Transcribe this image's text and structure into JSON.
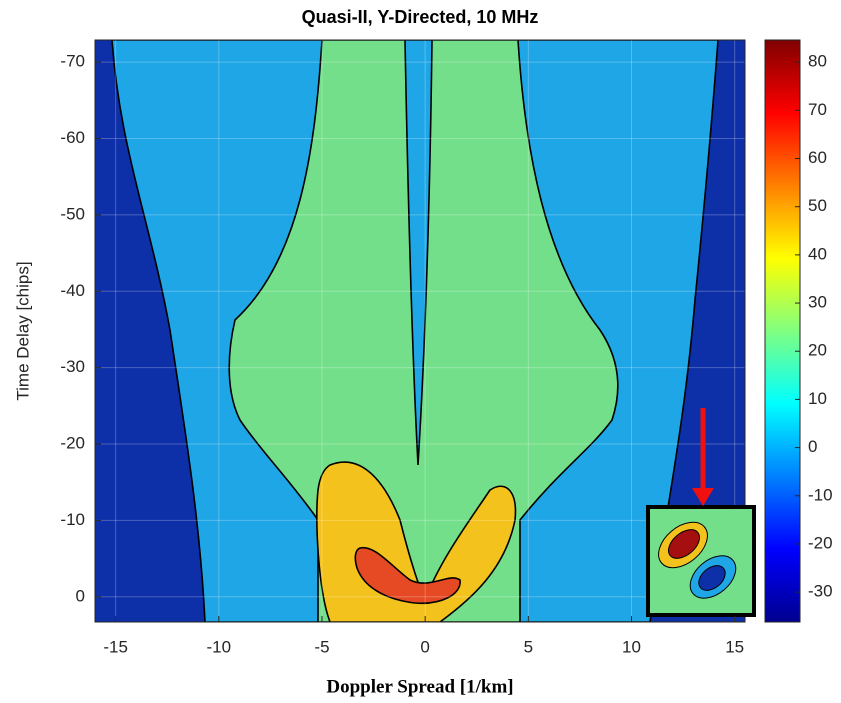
{
  "chart_data": {
    "type": "contour",
    "title": "Quasi-II, Y-Directed, 10 MHz",
    "x_label": "Doppler Spread [1/km]",
    "y_label": "Time Delay [chips]",
    "xlim": [
      -16,
      15.5
    ],
    "xticks": [
      -15,
      -10,
      -5,
      0,
      5,
      10,
      15
    ],
    "ylim": [
      3.3,
      -72.9
    ],
    "yticks": [
      0,
      -10,
      -20,
      -30,
      -40,
      -50,
      -60,
      -70
    ],
    "colorbar": {
      "lim": [
        -36.2,
        84.6
      ],
      "ticks": [
        -30,
        -20,
        -10,
        0,
        10,
        20,
        30,
        40,
        50,
        60,
        70,
        80
      ]
    },
    "colormap": "jet",
    "grid": true
  }
}
